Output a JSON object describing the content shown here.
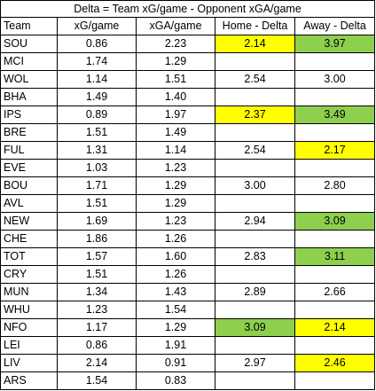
{
  "title": "Delta = Team xG/game - Opponent xGA/game",
  "columns": [
    "Team",
    "xG/game",
    "xGA/game",
    "Home - Delta",
    "Away - Delta"
  ],
  "colors": {
    "yellow": "#ffff00",
    "green": "#8ecf4e"
  },
  "rows": [
    {
      "team": "SOU",
      "xg": "0.86",
      "xga": "2.23",
      "home": "2.14",
      "home_hl": "yellow",
      "away": "3.97",
      "away_hl": "green"
    },
    {
      "team": "MCI",
      "xg": "1.74",
      "xga": "1.29",
      "home": "",
      "home_hl": "",
      "away": "",
      "away_hl": ""
    },
    {
      "team": "WOL",
      "xg": "1.14",
      "xga": "1.51",
      "home": "2.54",
      "home_hl": "",
      "away": "3.00",
      "away_hl": ""
    },
    {
      "team": "BHA",
      "xg": "1.49",
      "xga": "1.40",
      "home": "",
      "home_hl": "",
      "away": "",
      "away_hl": ""
    },
    {
      "team": "IPS",
      "xg": "0.89",
      "xga": "1.97",
      "home": "2.37",
      "home_hl": "yellow",
      "away": "3.49",
      "away_hl": "green"
    },
    {
      "team": "BRE",
      "xg": "1.51",
      "xga": "1.49",
      "home": "",
      "home_hl": "",
      "away": "",
      "away_hl": ""
    },
    {
      "team": "FUL",
      "xg": "1.31",
      "xga": "1.14",
      "home": "2.54",
      "home_hl": "",
      "away": "2.17",
      "away_hl": "yellow"
    },
    {
      "team": "EVE",
      "xg": "1.03",
      "xga": "1.23",
      "home": "",
      "home_hl": "",
      "away": "",
      "away_hl": ""
    },
    {
      "team": "BOU",
      "xg": "1.71",
      "xga": "1.29",
      "home": "3.00",
      "home_hl": "",
      "away": "2.80",
      "away_hl": ""
    },
    {
      "team": "AVL",
      "xg": "1.51",
      "xga": "1.29",
      "home": "",
      "home_hl": "",
      "away": "",
      "away_hl": ""
    },
    {
      "team": "NEW",
      "xg": "1.69",
      "xga": "1.23",
      "home": "2.94",
      "home_hl": "",
      "away": "3.09",
      "away_hl": "green"
    },
    {
      "team": "CHE",
      "xg": "1.86",
      "xga": "1.26",
      "home": "",
      "home_hl": "",
      "away": "",
      "away_hl": ""
    },
    {
      "team": "TOT",
      "xg": "1.57",
      "xga": "1.60",
      "home": "2.83",
      "home_hl": "",
      "away": "3.11",
      "away_hl": "green"
    },
    {
      "team": "CRY",
      "xg": "1.51",
      "xga": "1.26",
      "home": "",
      "home_hl": "",
      "away": "",
      "away_hl": ""
    },
    {
      "team": "MUN",
      "xg": "1.34",
      "xga": "1.43",
      "home": "2.89",
      "home_hl": "",
      "away": "2.66",
      "away_hl": ""
    },
    {
      "team": "WHU",
      "xg": "1.23",
      "xga": "1.54",
      "home": "",
      "home_hl": "",
      "away": "",
      "away_hl": ""
    },
    {
      "team": "NFO",
      "xg": "1.17",
      "xga": "1.29",
      "home": "3.09",
      "home_hl": "green",
      "away": "2.14",
      "away_hl": "yellow"
    },
    {
      "team": "LEI",
      "xg": "0.86",
      "xga": "1.91",
      "home": "",
      "home_hl": "",
      "away": "",
      "away_hl": ""
    },
    {
      "team": "LIV",
      "xg": "2.14",
      "xga": "0.91",
      "home": "2.97",
      "home_hl": "",
      "away": "2.46",
      "away_hl": "yellow"
    },
    {
      "team": "ARS",
      "xg": "1.54",
      "xga": "0.83",
      "home": "",
      "home_hl": "",
      "away": "",
      "away_hl": ""
    }
  ]
}
